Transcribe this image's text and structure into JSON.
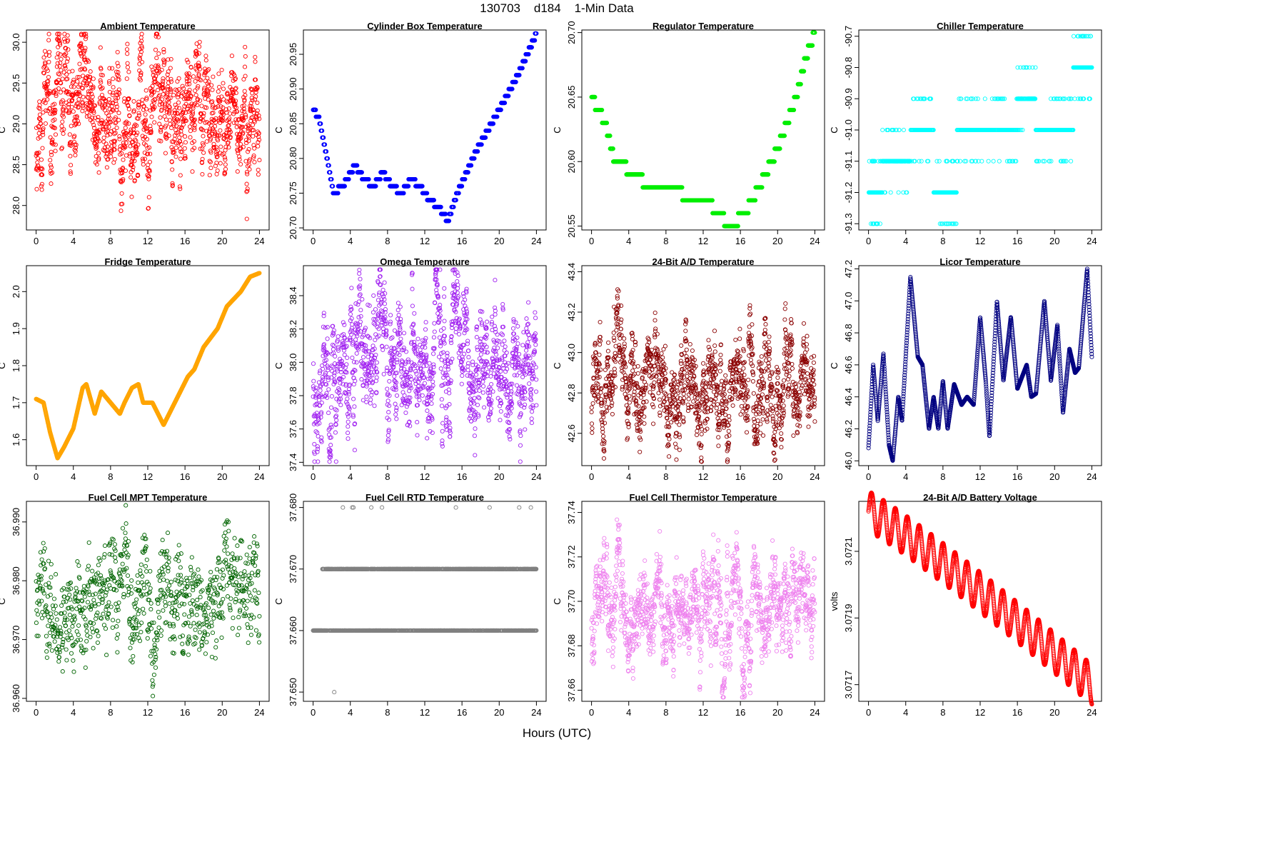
{
  "header": {
    "title": "130703    d184    1-Min Data"
  },
  "footer": {
    "xlabel": "Hours (UTC)"
  },
  "chart_data": [
    {
      "type": "scatter",
      "title": "Ambient Temperature",
      "ylabel": "C",
      "color": "#ff0000",
      "xlim": [
        0,
        24
      ],
      "xticks": [
        0,
        4,
        8,
        12,
        16,
        20,
        24
      ],
      "ylim": [
        27.7,
        30.15
      ],
      "yticks": [
        28.0,
        28.5,
        29.0,
        29.5,
        30.0
      ],
      "ydec": 1,
      "gen": {
        "kind": "noise",
        "base": 29.1,
        "amp": 0.9,
        "seed": 11
      }
    },
    {
      "type": "scatter",
      "title": "Cylinder Box Temperature",
      "ylabel": "C",
      "color": "#0000ff",
      "xlim": [
        0,
        24
      ],
      "xticks": [
        0,
        4,
        8,
        12,
        16,
        20,
        24
      ],
      "ylim": [
        20.697,
        20.985
      ],
      "yticks": [
        20.7,
        20.75,
        20.8,
        20.85,
        20.9,
        20.95
      ],
      "ydec": 2,
      "gen": {
        "kind": "knots",
        "step": 0.01,
        "knots": [
          [
            0,
            20.87
          ],
          [
            0.6,
            20.86
          ],
          [
            1.5,
            20.8
          ],
          [
            2.2,
            20.75
          ],
          [
            3.2,
            20.76
          ],
          [
            4.5,
            20.79
          ],
          [
            5.5,
            20.77
          ],
          [
            6.5,
            20.76
          ],
          [
            7.5,
            20.78
          ],
          [
            8.5,
            20.76
          ],
          [
            9.5,
            20.75
          ],
          [
            10.5,
            20.77
          ],
          [
            11.5,
            20.76
          ],
          [
            12.5,
            20.74
          ],
          [
            13.5,
            20.73
          ],
          [
            14.5,
            20.71
          ],
          [
            15.5,
            20.75
          ],
          [
            17.5,
            20.81
          ],
          [
            20,
            20.87
          ],
          [
            22,
            20.92
          ],
          [
            24,
            20.98
          ]
        ]
      }
    },
    {
      "type": "scatter",
      "title": "Regulator Temperature",
      "ylabel": "C",
      "color": "#00ee00",
      "xlim": [
        0,
        24
      ],
      "xticks": [
        0,
        4,
        8,
        12,
        16,
        20,
        24
      ],
      "ylim": [
        20.547,
        20.702
      ],
      "yticks": [
        20.55,
        20.6,
        20.65,
        20.7
      ],
      "ydec": 2,
      "gen": {
        "kind": "knots",
        "step": 0.01,
        "knots": [
          [
            0,
            20.65
          ],
          [
            1.5,
            20.63
          ],
          [
            2.5,
            20.6
          ],
          [
            5,
            20.59
          ],
          [
            6,
            20.58
          ],
          [
            9,
            20.58
          ],
          [
            10.5,
            20.57
          ],
          [
            12.5,
            20.57
          ],
          [
            13.5,
            20.56
          ],
          [
            15,
            20.55
          ],
          [
            16.5,
            20.56
          ],
          [
            18,
            20.58
          ],
          [
            20,
            20.61
          ],
          [
            22,
            20.65
          ],
          [
            23,
            20.68
          ],
          [
            24,
            20.7
          ]
        ]
      }
    },
    {
      "type": "scatter",
      "title": "Chiller Temperature",
      "ylabel": "C",
      "color": "#00ffff",
      "xlim": [
        0,
        24
      ],
      "xticks": [
        0,
        4,
        8,
        12,
        16,
        20,
        24
      ],
      "ylim": [
        -91.32,
        -90.68
      ],
      "yticks": [
        -91.3,
        -91.2,
        -91.1,
        -91.0,
        -90.9,
        -90.8,
        -90.7
      ],
      "ydec": 1,
      "gen": {
        "kind": "levels",
        "seed": 5,
        "segments": [
          [
            0,
            1.5,
            -91.2
          ],
          [
            1.5,
            4.5,
            -91.1
          ],
          [
            4.5,
            7,
            -91.0
          ],
          [
            7,
            9.5,
            -91.2
          ],
          [
            9.5,
            12,
            -91.0
          ],
          [
            12,
            16,
            -91.0
          ],
          [
            16,
            18,
            -90.9
          ],
          [
            18,
            22,
            -91.0
          ],
          [
            22,
            24,
            -90.8
          ]
        ]
      }
    },
    {
      "type": "scatter",
      "title": "Fridge Temperature",
      "ylabel": "C",
      "color": "#ffa500",
      "xlim": [
        0,
        24
      ],
      "xticks": [
        0,
        4,
        8,
        12,
        16,
        20,
        24
      ],
      "ylim": [
        1.53,
        2.07
      ],
      "yticks": [
        1.6,
        1.7,
        1.8,
        1.9,
        2.0
      ],
      "ydec": 1,
      "gen": {
        "kind": "knots",
        "knots": [
          [
            0,
            1.71
          ],
          [
            0.8,
            1.7
          ],
          [
            1.5,
            1.62
          ],
          [
            2.3,
            1.55
          ],
          [
            3,
            1.58
          ],
          [
            4,
            1.63
          ],
          [
            5,
            1.74
          ],
          [
            5.4,
            1.75
          ],
          [
            6.3,
            1.67
          ],
          [
            7,
            1.73
          ],
          [
            8,
            1.7
          ],
          [
            9,
            1.67
          ],
          [
            9.5,
            1.7
          ],
          [
            10.3,
            1.74
          ],
          [
            11,
            1.75
          ],
          [
            11.5,
            1.7
          ],
          [
            12.5,
            1.7
          ],
          [
            13.7,
            1.64
          ],
          [
            14.5,
            1.68
          ],
          [
            15.5,
            1.73
          ],
          [
            16.3,
            1.77
          ],
          [
            17,
            1.79
          ],
          [
            18,
            1.85
          ],
          [
            19.5,
            1.9
          ],
          [
            20.5,
            1.96
          ],
          [
            22,
            2.0
          ],
          [
            23,
            2.04
          ],
          [
            24,
            2.05
          ]
        ]
      }
    },
    {
      "type": "scatter",
      "title": "Omega Temperature",
      "ylabel": "C",
      "color": "#a020f0",
      "xlim": [
        0,
        24
      ],
      "xticks": [
        0,
        4,
        8,
        12,
        16,
        20,
        24
      ],
      "ylim": [
        37.38,
        38.58
      ],
      "yticks": [
        37.4,
        37.6,
        37.8,
        38.0,
        38.2,
        38.4
      ],
      "ydec": 1,
      "gen": {
        "kind": "noise",
        "base": 38.0,
        "amp": 0.45,
        "seed": 23
      }
    },
    {
      "type": "scatter",
      "title": "24-Bit A/D Temperature",
      "ylabel": "C",
      "color": "#8b0000",
      "xlim": [
        0,
        24
      ],
      "xticks": [
        0,
        4,
        8,
        12,
        16,
        20,
        24
      ],
      "ylim": [
        42.44,
        43.43
      ],
      "yticks": [
        42.6,
        42.8,
        43.0,
        43.2,
        43.4
      ],
      "ydec": 1,
      "gen": {
        "kind": "noise",
        "base": 42.85,
        "amp": 0.3,
        "seed": 31
      }
    },
    {
      "type": "scatter",
      "title": "Licor Temperature",
      "ylabel": "C",
      "color": "#000080",
      "xlim": [
        0,
        24
      ],
      "xticks": [
        0,
        4,
        8,
        12,
        16,
        20,
        24
      ],
      "ylim": [
        45.97,
        47.22
      ],
      "yticks": [
        46.0,
        46.2,
        46.4,
        46.6,
        46.8,
        47.0,
        47.2
      ],
      "ydec": 1,
      "gen": {
        "kind": "knots",
        "dense": true,
        "knots": [
          [
            0,
            46.08
          ],
          [
            0.5,
            46.6
          ],
          [
            1,
            46.25
          ],
          [
            1.6,
            46.67
          ],
          [
            2.2,
            46.1
          ],
          [
            2.6,
            46.0
          ],
          [
            3.2,
            46.4
          ],
          [
            3.6,
            46.25
          ],
          [
            4.5,
            47.15
          ],
          [
            5.3,
            46.65
          ],
          [
            5.8,
            46.6
          ],
          [
            6.5,
            46.2
          ],
          [
            7,
            46.4
          ],
          [
            7.5,
            46.2
          ],
          [
            8,
            46.5
          ],
          [
            8.5,
            46.2
          ],
          [
            9.2,
            46.48
          ],
          [
            10,
            46.35
          ],
          [
            10.6,
            46.4
          ],
          [
            11.3,
            46.35
          ],
          [
            12,
            46.9
          ],
          [
            12.6,
            46.5
          ],
          [
            13,
            46.15
          ],
          [
            13.8,
            47.0
          ],
          [
            14.5,
            46.5
          ],
          [
            15.3,
            46.9
          ],
          [
            16,
            46.45
          ],
          [
            17,
            46.6
          ],
          [
            17.5,
            46.4
          ],
          [
            18,
            46.42
          ],
          [
            18.9,
            47.0
          ],
          [
            19.6,
            46.5
          ],
          [
            20.3,
            46.85
          ],
          [
            20.9,
            46.3
          ],
          [
            21.6,
            46.7
          ],
          [
            22.2,
            46.55
          ],
          [
            22.6,
            46.58
          ],
          [
            23.5,
            47.2
          ],
          [
            24,
            46.65
          ]
        ]
      }
    },
    {
      "type": "scatter",
      "title": "Fuel Cell MPT Temperature",
      "ylabel": "C",
      "color": "#006400",
      "xlim": [
        0,
        24
      ],
      "xticks": [
        0,
        4,
        8,
        12,
        16,
        20,
        24
      ],
      "ylim": [
        36.9595,
        36.9935
      ],
      "yticks": [
        36.96,
        36.97,
        36.98,
        36.99
      ],
      "ydec": 3,
      "gen": {
        "kind": "noise",
        "base": 36.976,
        "amp": 0.009,
        "seed": 41,
        "sparse": true
      }
    },
    {
      "type": "scatter",
      "title": "Fuel Cell RTD Temperature",
      "ylabel": "C",
      "color": "#808080",
      "xlim": [
        0,
        24
      ],
      "xticks": [
        0,
        4,
        8,
        12,
        16,
        20,
        24
      ],
      "ylim": [
        37.6485,
        37.681
      ],
      "yticks": [
        37.65,
        37.66,
        37.67,
        37.68
      ],
      "ydec": 3,
      "gen": {
        "kind": "rtd",
        "seed": 53
      }
    },
    {
      "type": "scatter",
      "title": "Fuel Cell Thermistor Temperature",
      "ylabel": "C",
      "color": "#ee82ee",
      "xlim": [
        0,
        24
      ],
      "xticks": [
        0,
        4,
        8,
        12,
        16,
        20,
        24
      ],
      "ylim": [
        37.655,
        37.745
      ],
      "yticks": [
        37.66,
        37.68,
        37.7,
        37.72,
        37.74
      ],
      "ydec": 2,
      "gen": {
        "kind": "noise",
        "base": 37.695,
        "amp": 0.028,
        "seed": 61
      }
    },
    {
      "type": "scatter",
      "title": "24-Bit A/D Battery Voltage",
      "ylabel": "volts",
      "color": "#ff0000",
      "xlim": [
        0,
        24
      ],
      "xticks": [
        0,
        4,
        8,
        12,
        16,
        20,
        24
      ],
      "ylim": [
        3.07165,
        3.07225
      ],
      "yticks": [
        3.0717,
        3.0719,
        3.0721
      ],
      "ydec": 4,
      "gen": {
        "kind": "battery",
        "start": 3.07222,
        "end": 3.0717
      }
    }
  ]
}
